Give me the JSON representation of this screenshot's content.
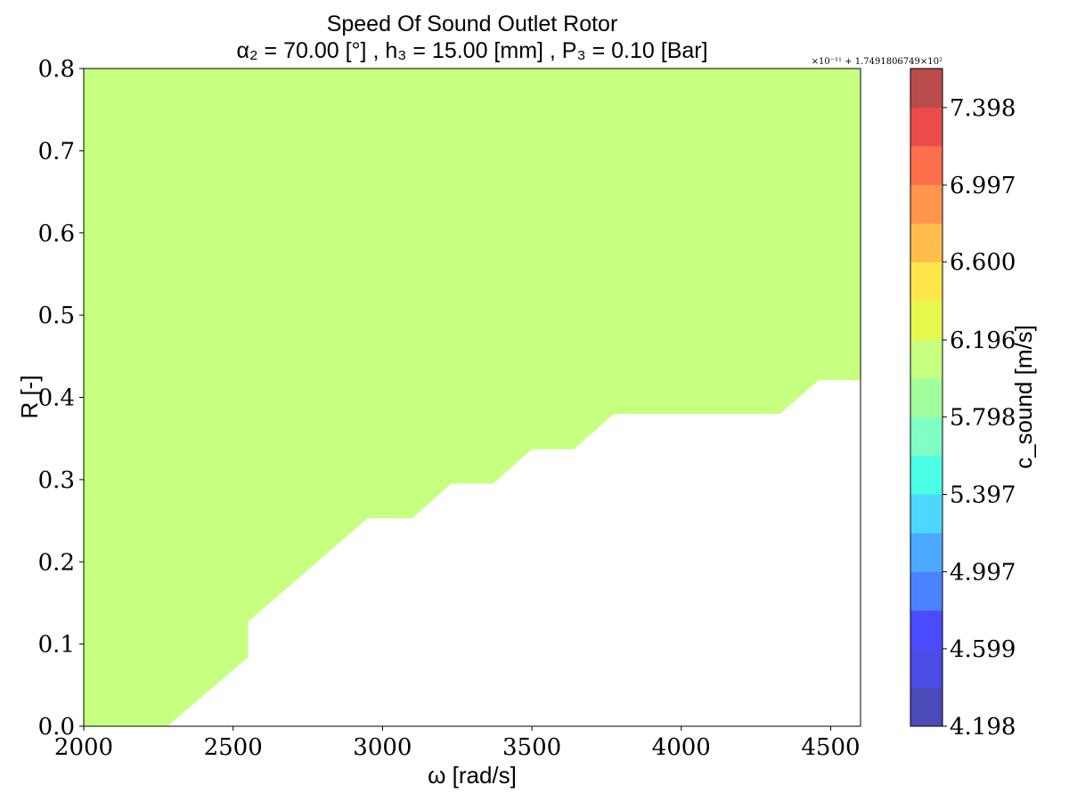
{
  "chart_data": {
    "type": "heatmap",
    "title": "Speed Of Sound Outlet Rotor",
    "subtitle": "α₂ = 70.00 [°] , h₃ = 15.00 [mm] , P₃ = 0.10 [Bar]",
    "xlabel": "ω [rad/s]",
    "ylabel": "R [-]",
    "xlim": [
      2000,
      4600
    ],
    "ylim": [
      0.0,
      0.8
    ],
    "xticks": [
      "2000",
      "2500",
      "3000",
      "3500",
      "4000",
      "4500"
    ],
    "yticks": [
      "0.0",
      "0.1",
      "0.2",
      "0.3",
      "0.4",
      "0.5",
      "0.6",
      "0.7",
      "0.8"
    ],
    "fill_color": "#c7ff80",
    "filled_region_lower_boundary": [
      {
        "x": 2000,
        "y": 0.0
      },
      {
        "x": 2280,
        "y": 0.0
      },
      {
        "x": 2550,
        "y": 0.084
      },
      {
        "x": 2550,
        "y": 0.127
      },
      {
        "x": 2950,
        "y": 0.253
      },
      {
        "x": 3100,
        "y": 0.253
      },
      {
        "x": 3230,
        "y": 0.295
      },
      {
        "x": 3370,
        "y": 0.295
      },
      {
        "x": 3500,
        "y": 0.337
      },
      {
        "x": 3640,
        "y": 0.337
      },
      {
        "x": 3775,
        "y": 0.38
      },
      {
        "x": 4330,
        "y": 0.38
      },
      {
        "x": 4460,
        "y": 0.421
      },
      {
        "x": 4600,
        "y": 0.421
      }
    ],
    "colorbar": {
      "label": "c_sound [m/s]",
      "offset_text": "×10⁻¹¹ + 1.7491806749×10²",
      "tick_labels": [
        "4.198",
        "4.599",
        "4.997",
        "5.397",
        "5.798",
        "6.196",
        "6.600",
        "6.997",
        "7.398"
      ],
      "tick_values": [
        4.198,
        4.599,
        4.997,
        5.397,
        5.798,
        6.196,
        6.6,
        6.997,
        7.398
      ],
      "range": [
        4.198,
        7.6
      ],
      "band_colors": [
        "#4b4bb9",
        "#4b4be6",
        "#4b4bff",
        "#4b82ff",
        "#4baaff",
        "#4bd7ff",
        "#4bffe6",
        "#80ffc4",
        "#a2ff9e",
        "#c7ff80",
        "#e6f84b",
        "#ffe64b",
        "#ffbe4b",
        "#ff964b",
        "#ff6e4b",
        "#ec4b4b",
        "#b94b4b"
      ]
    }
  }
}
